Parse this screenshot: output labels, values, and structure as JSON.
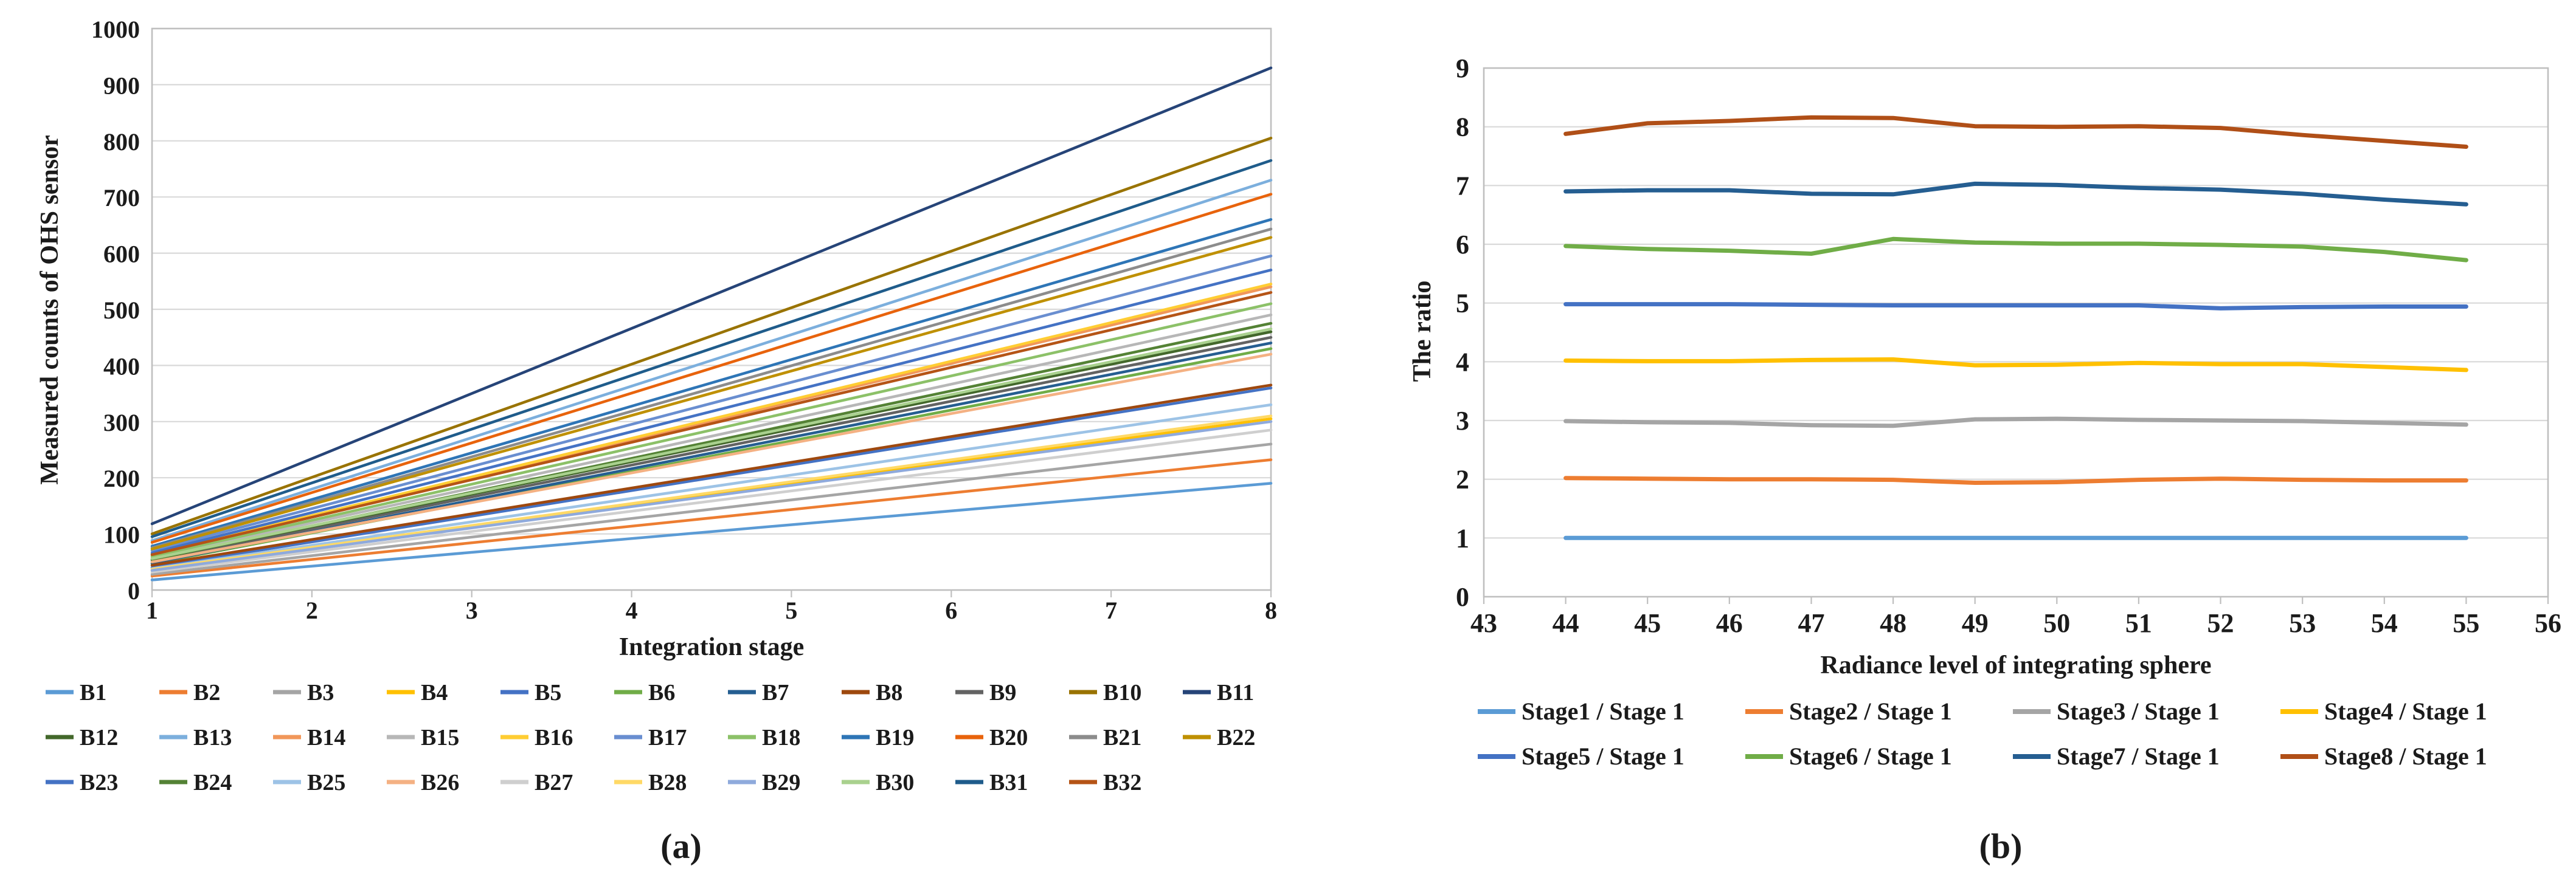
{
  "figure": {
    "caption_a": "(a)",
    "caption_b": "(b)"
  },
  "chart_data": [
    {
      "id": "a",
      "type": "line",
      "title": "",
      "xlabel": "Integration stage",
      "ylabel": "Measured counts of OHS sensor",
      "xlim": [
        1,
        8
      ],
      "ylim": [
        0,
        1000
      ],
      "xticks": [
        1,
        2,
        3,
        4,
        5,
        6,
        7,
        8
      ],
      "yticks": [
        0,
        100,
        200,
        300,
        400,
        500,
        600,
        700,
        800,
        900,
        1000
      ],
      "grid": "horizontal",
      "legend_position": "bottom",
      "x_start": 1,
      "x_end": 8,
      "note": "All 32 bands increase linearly from integration stage 1 to stage 8; start/end counts estimated from gridlines",
      "series": [
        {
          "name": "B1",
          "color": "#5B9BD5",
          "start": 18,
          "end": 190
        },
        {
          "name": "B2",
          "color": "#ED7D31",
          "start": 25,
          "end": 232
        },
        {
          "name": "B3",
          "color": "#A5A5A5",
          "start": 28,
          "end": 260
        },
        {
          "name": "B4",
          "color": "#FFC000",
          "start": 35,
          "end": 305
        },
        {
          "name": "B5",
          "color": "#4472C4",
          "start": 40,
          "end": 360
        },
        {
          "name": "B6",
          "color": "#70AD47",
          "start": 47,
          "end": 430
        },
        {
          "name": "B7",
          "color": "#255E91",
          "start": 48,
          "end": 440
        },
        {
          "name": "B8",
          "color": "#9E480E",
          "start": 44,
          "end": 365
        },
        {
          "name": "B9",
          "color": "#636363",
          "start": 52,
          "end": 450
        },
        {
          "name": "B10",
          "color": "#997300",
          "start": 100,
          "end": 805
        },
        {
          "name": "B11",
          "color": "#264478",
          "start": 118,
          "end": 930
        },
        {
          "name": "B12",
          "color": "#43682B",
          "start": 55,
          "end": 460
        },
        {
          "name": "B13",
          "color": "#7CAFDD",
          "start": 88,
          "end": 730
        },
        {
          "name": "B14",
          "color": "#F1975A",
          "start": 62,
          "end": 540
        },
        {
          "name": "B15",
          "color": "#B7B7B7",
          "start": 58,
          "end": 490
        },
        {
          "name": "B16",
          "color": "#FFCD33",
          "start": 64,
          "end": 545
        },
        {
          "name": "B17",
          "color": "#698ED0",
          "start": 70,
          "end": 595
        },
        {
          "name": "B18",
          "color": "#8CC168",
          "start": 60,
          "end": 510
        },
        {
          "name": "B19",
          "color": "#2E75B6",
          "start": 78,
          "end": 660
        },
        {
          "name": "B20",
          "color": "#E8630C",
          "start": 85,
          "end": 705
        },
        {
          "name": "B21",
          "color": "#8C8C8C",
          "start": 75,
          "end": 643
        },
        {
          "name": "B22",
          "color": "#BF9000",
          "start": 73,
          "end": 628
        },
        {
          "name": "B23",
          "color": "#4472C4",
          "start": 66,
          "end": 570
        },
        {
          "name": "B24",
          "color": "#548235",
          "start": 54,
          "end": 475
        },
        {
          "name": "B25",
          "color": "#9DC3E6",
          "start": 38,
          "end": 330
        },
        {
          "name": "B26",
          "color": "#F4B183",
          "start": 50,
          "end": 420
        },
        {
          "name": "B27",
          "color": "#CFCFCF",
          "start": 32,
          "end": 285
        },
        {
          "name": "B28",
          "color": "#FFD966",
          "start": 37,
          "end": 310
        },
        {
          "name": "B29",
          "color": "#8FAADC",
          "start": 35,
          "end": 300
        },
        {
          "name": "B30",
          "color": "#A9D18E",
          "start": 56,
          "end": 465
        },
        {
          "name": "B31",
          "color": "#1F5C8B",
          "start": 95,
          "end": 765
        },
        {
          "name": "B32",
          "color": "#B55416",
          "start": 63,
          "end": 530
        }
      ]
    },
    {
      "id": "b",
      "type": "line",
      "title": "",
      "xlabel": "Radiance level of integrating sphere",
      "ylabel": "The ratio",
      "xlim": [
        43,
        56
      ],
      "ylim": [
        0,
        9
      ],
      "xticks": [
        43,
        44,
        45,
        46,
        47,
        48,
        49,
        50,
        51,
        52,
        53,
        54,
        55,
        56
      ],
      "yticks": [
        0,
        1,
        2,
        3,
        4,
        5,
        6,
        7,
        8,
        9
      ],
      "grid": "horizontal",
      "legend_position": "bottom",
      "x": [
        44,
        45,
        46,
        47,
        48,
        49,
        50,
        51,
        52,
        53,
        54,
        55
      ],
      "series": [
        {
          "name": "Stage1 / Stage 1",
          "color": "#5B9BD5",
          "values": [
            1.0,
            1.0,
            1.0,
            1.0,
            1.0,
            1.0,
            1.0,
            1.0,
            1.0,
            1.0,
            1.0,
            1.0
          ]
        },
        {
          "name": "Stage2 / Stage 1",
          "color": "#ED7D31",
          "values": [
            2.02,
            2.01,
            2.0,
            2.0,
            1.99,
            1.94,
            1.95,
            1.99,
            2.01,
            1.99,
            1.98,
            1.98
          ]
        },
        {
          "name": "Stage3 / Stage 1",
          "color": "#A5A5A5",
          "values": [
            2.99,
            2.97,
            2.96,
            2.92,
            2.91,
            3.02,
            3.03,
            3.01,
            3.0,
            2.99,
            2.96,
            2.93
          ]
        },
        {
          "name": "Stage4 / Stage 1",
          "color": "#FFC000",
          "values": [
            4.02,
            4.01,
            4.01,
            4.03,
            4.04,
            3.94,
            3.95,
            3.98,
            3.96,
            3.96,
            3.91,
            3.86
          ]
        },
        {
          "name": "Stage5 / Stage 1",
          "color": "#4472C4",
          "values": [
            4.98,
            4.98,
            4.98,
            4.97,
            4.96,
            4.96,
            4.96,
            4.96,
            4.91,
            4.93,
            4.94,
            4.94
          ]
        },
        {
          "name": "Stage6 / Stage 1",
          "color": "#70AD47",
          "values": [
            5.97,
            5.92,
            5.89,
            5.84,
            6.09,
            6.03,
            6.01,
            6.01,
            5.99,
            5.96,
            5.87,
            5.73
          ]
        },
        {
          "name": "Stage7 / Stage 1",
          "color": "#255E91",
          "values": [
            6.9,
            6.92,
            6.92,
            6.86,
            6.85,
            7.03,
            7.01,
            6.96,
            6.93,
            6.86,
            6.76,
            6.68
          ]
        },
        {
          "name": "Stage8 / Stage 1",
          "color": "#B04F17",
          "values": [
            7.88,
            8.06,
            8.1,
            8.16,
            8.15,
            8.01,
            8.0,
            8.01,
            7.98,
            7.86,
            7.76,
            7.66
          ]
        }
      ]
    }
  ]
}
